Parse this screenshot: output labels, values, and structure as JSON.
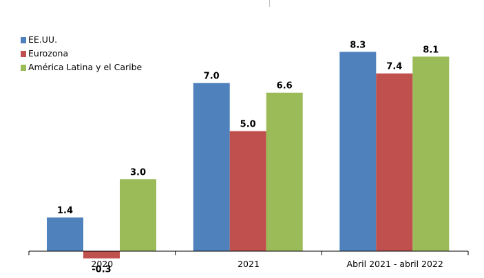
{
  "chart_data": {
    "type": "bar",
    "categories": [
      "2020",
      "2021",
      "Abril 2021 - abril 2022"
    ],
    "series": [
      {
        "name": "EE.UU.",
        "values": [
          1.4,
          7.0,
          8.3
        ],
        "labels": [
          "1.4",
          "7.0",
          "8.3"
        ],
        "color": "#4f81bd"
      },
      {
        "name": "Eurozona",
        "values": [
          -0.3,
          5.0,
          7.4
        ],
        "labels": [
          "-0.3",
          "5.0",
          "7.4"
        ],
        "color": "#c0504d"
      },
      {
        "name": "América Latina y el Caribe",
        "values": [
          3.0,
          6.6,
          8.1
        ],
        "labels": [
          "3.0",
          "6.6",
          "8.1"
        ],
        "color": "#9bbb59"
      }
    ],
    "title": "",
    "xlabel": "",
    "ylabel": "",
    "ylim": [
      -0.4,
      8.5
    ],
    "grid": false,
    "legend": "top-left"
  }
}
